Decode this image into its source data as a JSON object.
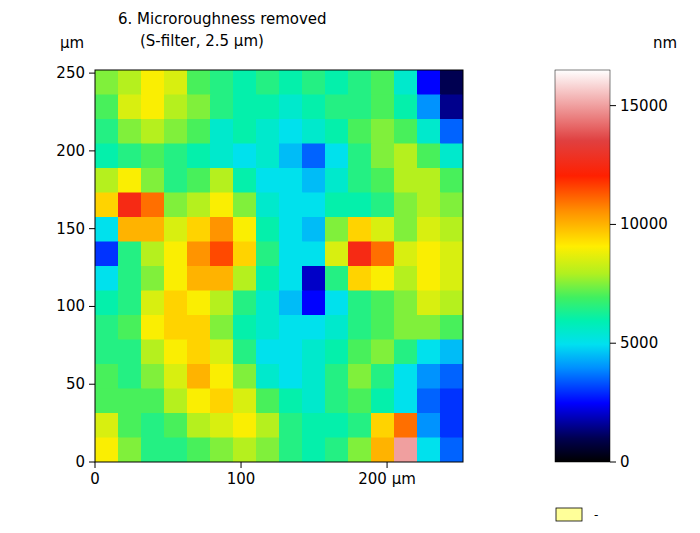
{
  "chart_data": {
    "type": "heatmap",
    "title": "6. Microroughness removed",
    "subtitle": "(S-filter, 2.5 µm)",
    "y_label": "µm",
    "colorbar_label": "nm",
    "xlim": [
      0,
      252
    ],
    "ylim": [
      0,
      252
    ],
    "xticks": [
      0,
      100,
      {
        "value": 200,
        "label": "200 µm"
      }
    ],
    "yticks": [
      0,
      50,
      100,
      150,
      200,
      250
    ],
    "colorbar_range": [
      0,
      16500
    ],
    "colorbar_ticks": [
      0,
      5000,
      10000,
      15000
    ],
    "missing": {
      "label": "-"
    },
    "cells": [
      [
        7500,
        8000,
        9000,
        8500,
        7000,
        6500,
        6000,
        6500,
        6000,
        6500,
        6000,
        6500,
        7000,
        5500,
        2500,
        1000
      ],
      [
        7000,
        8500,
        9000,
        8000,
        7500,
        6500,
        6000,
        6000,
        5500,
        6000,
        6500,
        6500,
        7000,
        6000,
        4000,
        1500
      ],
      [
        6500,
        7500,
        8000,
        7500,
        7000,
        5500,
        6000,
        5500,
        5000,
        5500,
        6000,
        7000,
        7500,
        7000,
        5500,
        3500
      ],
      [
        6000,
        6500,
        7000,
        6500,
        6000,
        5500,
        5000,
        5500,
        4500,
        3500,
        5000,
        6500,
        7500,
        8000,
        7000,
        5500
      ],
      [
        8000,
        9000,
        7500,
        6500,
        7000,
        8000,
        6000,
        5000,
        5000,
        4500,
        5500,
        6500,
        7000,
        8000,
        8000,
        7000
      ],
      [
        9500,
        12500,
        11000,
        7500,
        8000,
        9000,
        7500,
        5500,
        5000,
        5000,
        6000,
        6000,
        6500,
        7500,
        8000,
        7500
      ],
      [
        5000,
        10000,
        10000,
        8500,
        9500,
        10500,
        9000,
        6000,
        5000,
        4500,
        7500,
        9500,
        8500,
        7500,
        8500,
        8000
      ],
      [
        3000,
        6500,
        8000,
        9000,
        10500,
        11500,
        9500,
        6500,
        5000,
        5000,
        8500,
        12500,
        11000,
        8500,
        9000,
        8500
      ],
      [
        5000,
        6500,
        7500,
        9000,
        10000,
        10000,
        8000,
        6000,
        5000,
        2000,
        6500,
        9500,
        9000,
        8000,
        9000,
        8500
      ],
      [
        6000,
        6500,
        8500,
        9500,
        9000,
        8000,
        6500,
        5500,
        4500,
        2500,
        5000,
        6500,
        7000,
        7500,
        8500,
        8000
      ],
      [
        6500,
        7000,
        9000,
        9500,
        9500,
        7500,
        6000,
        5500,
        5000,
        5000,
        5500,
        6500,
        7000,
        7500,
        7500,
        7000
      ],
      [
        6500,
        6500,
        8000,
        9000,
        9500,
        8500,
        6500,
        5000,
        5000,
        5500,
        6000,
        7000,
        7500,
        6500,
        5000,
        4500
      ],
      [
        7000,
        6500,
        7500,
        8500,
        10000,
        9000,
        7500,
        5500,
        5000,
        5500,
        6500,
        7500,
        6500,
        5000,
        4000,
        3500
      ],
      [
        7000,
        7000,
        7000,
        8000,
        9000,
        9500,
        8500,
        7000,
        6000,
        5500,
        6500,
        7000,
        6000,
        5000,
        3500,
        3000
      ],
      [
        8500,
        7000,
        6500,
        7000,
        8000,
        8500,
        9000,
        8000,
        6500,
        6000,
        6000,
        6500,
        9500,
        11000,
        4000,
        3000
      ],
      [
        9000,
        7500,
        6500,
        6500,
        7000,
        7500,
        8000,
        7500,
        6500,
        6000,
        6500,
        7500,
        10000,
        15000,
        5000,
        3500
      ]
    ]
  }
}
